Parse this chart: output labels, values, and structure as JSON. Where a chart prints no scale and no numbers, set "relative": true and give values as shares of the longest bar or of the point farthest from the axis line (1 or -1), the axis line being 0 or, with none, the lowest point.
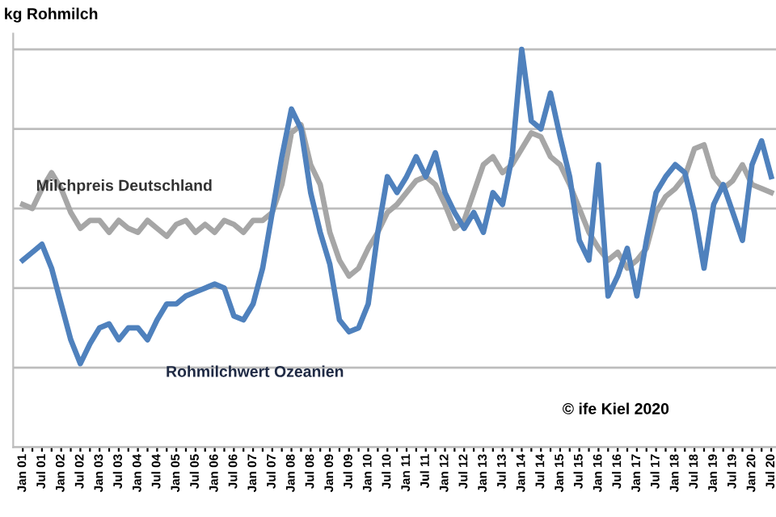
{
  "chart_data": {
    "type": "line",
    "relative": true,
    "ylabel": "kg Rohmilch",
    "annotations": [
      "© ife Kiel 2020"
    ],
    "grid": "y",
    "legend": false,
    "marker": "none",
    "line_style": "solid",
    "categories": [
      "Jan 01",
      null,
      "Jul 01",
      null,
      "Jan 02",
      null,
      "Jul 02",
      null,
      "Jan 03",
      null,
      "Jul 03",
      null,
      "Jan 04",
      null,
      "Jul 04",
      null,
      "Jan 05",
      null,
      "Jul 05",
      null,
      "Jan 06",
      null,
      "Jul 06",
      null,
      "Jan 07",
      null,
      "Jul 07",
      null,
      "Jan 08",
      null,
      "Jul 08",
      null,
      "Jan 09",
      null,
      "Jul 09",
      null,
      "Jan 10",
      null,
      "Jul 10",
      null,
      "Jan 11",
      null,
      "Jul 11",
      null,
      "Jan 12",
      null,
      "Jul 12",
      null,
      "Jan 13",
      null,
      "Jul 13",
      null,
      "Jan 14",
      null,
      "Jul 14",
      null,
      "Jan 15",
      null,
      "Jul 15",
      null,
      "Jan 16",
      null,
      "Jul 16",
      null,
      "Jan 17",
      null,
      "Jul 17",
      null,
      "Jan 18",
      null,
      "Jul 18",
      null,
      "Jan 19",
      null,
      "Jul 19",
      null,
      "Jan 20",
      null,
      "Jul 20"
    ],
    "series": [
      {
        "name": "Milchpreis Deutschland",
        "color": "#a6a6a6",
        "values": [
          0.61,
          0.6,
          0.65,
          0.69,
          0.65,
          0.59,
          0.55,
          0.57,
          0.57,
          0.54,
          0.57,
          0.55,
          0.54,
          0.57,
          0.55,
          0.53,
          0.56,
          0.57,
          0.54,
          0.56,
          0.54,
          0.57,
          0.56,
          0.54,
          0.57,
          0.57,
          0.59,
          0.66,
          0.79,
          0.81,
          0.71,
          0.66,
          0.54,
          0.47,
          0.43,
          0.45,
          0.5,
          0.54,
          0.59,
          0.61,
          0.64,
          0.67,
          0.68,
          0.66,
          0.61,
          0.55,
          0.57,
          0.64,
          0.71,
          0.73,
          0.69,
          0.71,
          0.75,
          0.79,
          0.78,
          0.73,
          0.71,
          0.66,
          0.6,
          0.54,
          0.5,
          0.47,
          0.49,
          0.45,
          0.47,
          0.5,
          0.59,
          0.63,
          0.65,
          0.68,
          0.75,
          0.76,
          0.68,
          0.65,
          0.67,
          0.71,
          0.66,
          0.65,
          0.64
        ]
      },
      {
        "name": "Rohmilchwert Ozeanien",
        "color": "#4f81bd",
        "values": [
          0.47,
          0.49,
          0.51,
          0.45,
          0.36,
          0.27,
          0.21,
          0.26,
          0.3,
          0.31,
          0.27,
          0.3,
          0.3,
          0.27,
          0.32,
          0.36,
          0.36,
          0.38,
          0.39,
          0.4,
          0.41,
          0.4,
          0.33,
          0.32,
          0.36,
          0.45,
          0.59,
          0.73,
          0.85,
          0.8,
          0.64,
          0.54,
          0.46,
          0.32,
          0.29,
          0.3,
          0.36,
          0.54,
          0.68,
          0.64,
          0.68,
          0.73,
          0.68,
          0.74,
          0.64,
          0.59,
          0.55,
          0.59,
          0.54,
          0.64,
          0.61,
          0.73,
          1,
          0.82,
          0.8,
          0.89,
          0.78,
          0.68,
          0.52,
          0.47,
          0.71,
          0.38,
          0.43,
          0.5,
          0.38,
          0.52,
          0.64,
          0.68,
          0.71,
          0.69,
          0.59,
          0.45,
          0.61,
          0.66,
          0.59,
          0.52,
          0.71,
          0.77,
          0.68
        ]
      }
    ]
  }
}
